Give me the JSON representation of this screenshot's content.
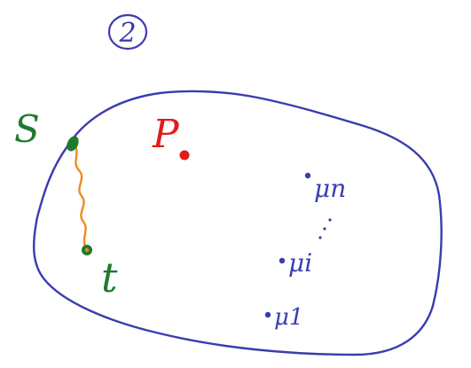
{
  "panel": {
    "number": "2"
  },
  "colors": {
    "boundary": "#3a3cb0",
    "point_p": "#e21b1b",
    "source": "#1f7a2e",
    "path": "#f08a1a",
    "mu_points": "#3a3cb0",
    "background": "#ffffff"
  },
  "labels": {
    "s": "S",
    "t": "t",
    "p": "P",
    "mu_n": "μn",
    "mu_i": "μi",
    "mu_1": "μ1"
  },
  "icons": {
    "panel_number": "circled-number-icon",
    "ellipsis": "vertical-dots-icon"
  }
}
